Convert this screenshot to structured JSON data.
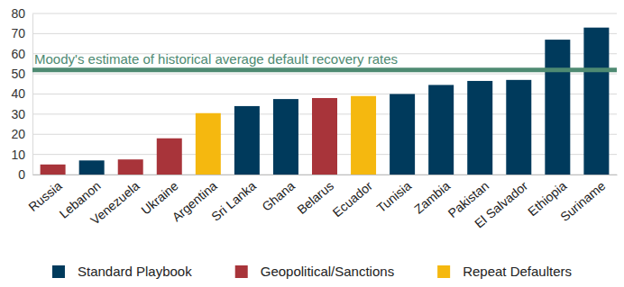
{
  "chart_data": {
    "type": "bar",
    "stacked": true,
    "legend": "bottom",
    "grid": true,
    "categories": [
      "Russia",
      "Lebanon",
      "Venezuela",
      "Ukraine",
      "Argentina",
      "Sri Lanka",
      "Ghana",
      "Belarus",
      "Ecuador",
      "Tunisia",
      "Zambia",
      "Pakistan",
      "El Salvador",
      "Ethiopia",
      "Suriname"
    ],
    "series": [
      {
        "name": "Standard Playbook",
        "color": "#003a5c",
        "values": [
          null,
          7,
          null,
          null,
          null,
          34,
          37.5,
          null,
          null,
          40,
          44.5,
          46.5,
          47,
          67,
          73
        ]
      },
      {
        "name": "Geopolitical/Sanctions",
        "color": "#a8343a",
        "values": [
          5,
          null,
          7.5,
          18,
          null,
          null,
          null,
          38,
          null,
          null,
          null,
          null,
          null,
          null,
          null
        ]
      },
      {
        "name": "Repeat Defaulters",
        "color": "#f5b80f",
        "values": [
          null,
          null,
          null,
          null,
          30.5,
          null,
          null,
          null,
          39,
          null,
          null,
          null,
          null,
          null,
          null
        ]
      }
    ],
    "ylim": [
      0,
      80
    ],
    "yticks": [
      0,
      10,
      20,
      30,
      40,
      50,
      60,
      70,
      80
    ],
    "annotations": [
      {
        "text": "Moody's estimate of historical average default recovery rates",
        "y": 52,
        "color": "#4e8a72"
      }
    ]
  }
}
